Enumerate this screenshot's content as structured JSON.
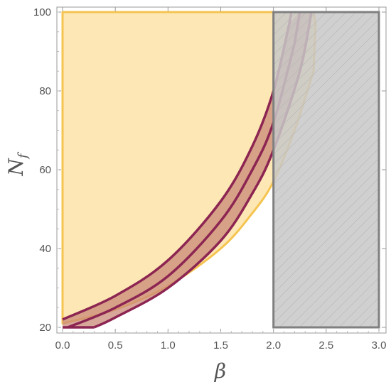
{
  "chart_data": {
    "type": "area",
    "xlabel": "β",
    "ylabel_main": "N",
    "ylabel_sub": "f",
    "xlim": [
      0,
      3
    ],
    "ylim": [
      20,
      100
    ],
    "x_ticks": [
      0.0,
      0.5,
      1.0,
      1.5,
      2.0,
      2.5,
      3.0
    ],
    "x_tick_labels": [
      "0.0",
      "0.5",
      "1.0",
      "1.5",
      "2.0",
      "2.5",
      "3.0"
    ],
    "y_ticks": [
      20,
      40,
      60,
      80,
      100
    ],
    "y_tick_labels": [
      "20",
      "40",
      "60",
      "80",
      "100"
    ],
    "grid": false,
    "regions": [
      {
        "kind": "yellow-region",
        "fill": "#fde3a7",
        "stroke": "#f5c451",
        "boundary_lower": [
          [
            0,
            21
          ],
          [
            0.5,
            24.5
          ],
          [
            1.0,
            30.5
          ],
          [
            1.5,
            40
          ],
          [
            1.8,
            49
          ],
          [
            2.0,
            57
          ],
          [
            2.2,
            70
          ],
          [
            2.38,
            85
          ]
        ],
        "top": 100,
        "left": 0
      },
      {
        "kind": "excluded-box",
        "fill": "#c8c8c8",
        "stroke": "#808080",
        "x_range": [
          2.0,
          3.0
        ],
        "y_range": [
          20,
          100
        ]
      },
      {
        "kind": "band",
        "fill": "#c98a78",
        "stroke": "#8c2552",
        "upper": [
          [
            0.0,
            22
          ],
          [
            0.5,
            28
          ],
          [
            1.0,
            37
          ],
          [
            1.5,
            52
          ],
          [
            1.8,
            66
          ],
          [
            2.0,
            80
          ],
          [
            2.15,
            97
          ]
        ],
        "middle": [
          [
            0.05,
            20
          ],
          [
            0.5,
            25
          ],
          [
            1.0,
            33
          ],
          [
            1.5,
            47
          ],
          [
            1.8,
            60
          ],
          [
            2.0,
            72
          ],
          [
            2.2,
            92
          ]
        ],
        "lower": [
          [
            0.3,
            20
          ],
          [
            0.5,
            22.5
          ],
          [
            1.0,
            30
          ],
          [
            1.5,
            42
          ],
          [
            1.8,
            54
          ],
          [
            2.0,
            65
          ],
          [
            2.25,
            85
          ],
          [
            2.36,
            100
          ]
        ]
      }
    ]
  }
}
